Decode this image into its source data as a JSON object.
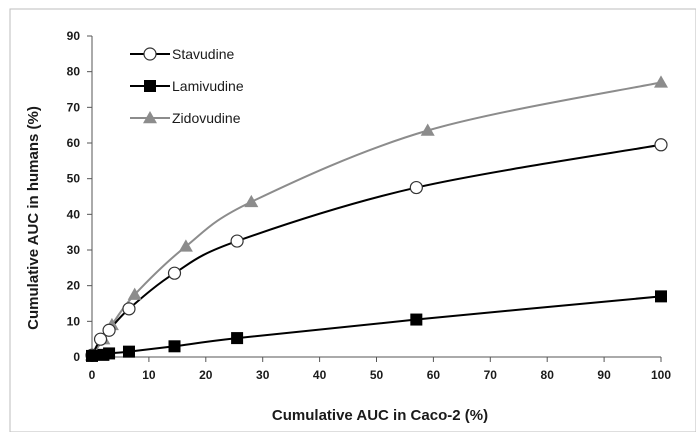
{
  "chart_data": {
    "type": "line",
    "xlabel": "Cumulative AUC in Caco-2 (%)",
    "ylabel": "Cumulative AUC in humans (%)",
    "xlim": [
      0,
      100
    ],
    "ylim": [
      0,
      90
    ],
    "xticks": [
      0,
      10,
      20,
      30,
      40,
      50,
      60,
      70,
      80,
      90,
      100
    ],
    "yticks": [
      0,
      10,
      20,
      30,
      40,
      50,
      60,
      70,
      80,
      90
    ],
    "grid": false,
    "legend_position": "top-left",
    "series": [
      {
        "name": "Stavudine",
        "marker": "open-circle",
        "color": "#000000",
        "x": [
          0,
          1.5,
          3,
          6.5,
          14.5,
          25.5,
          57,
          100
        ],
        "y": [
          0.5,
          5,
          7.5,
          13.5,
          23.5,
          32.5,
          47.5,
          59.5
        ]
      },
      {
        "name": "Lamivudine",
        "marker": "filled-square",
        "color": "#000000",
        "x": [
          0,
          2,
          3,
          6.5,
          14.5,
          25.5,
          57,
          100
        ],
        "y": [
          0.3,
          0.6,
          1,
          1.5,
          3,
          5.3,
          10.5,
          17
        ]
      },
      {
        "name": "Zidovudine",
        "marker": "filled-triangle",
        "color": "#8c8c8c",
        "x": [
          0,
          2,
          3.5,
          7.5,
          16.5,
          28,
          59,
          100
        ],
        "y": [
          0.5,
          5,
          9,
          17.5,
          31,
          43.5,
          63.5,
          77
        ]
      }
    ]
  }
}
